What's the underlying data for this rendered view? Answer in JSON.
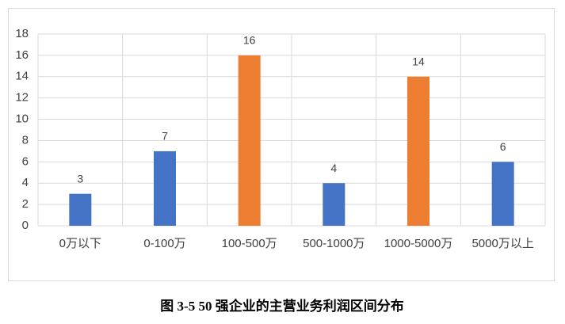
{
  "chart_data": {
    "type": "bar",
    "caption": "图 3-5 50 强企业的主营业务利润区间分布",
    "categories": [
      "0万以下",
      "0-100万",
      "100-500万",
      "500-1000万",
      "1000-5000万",
      "5000万以上"
    ],
    "values": [
      3,
      7,
      16,
      4,
      14,
      6
    ],
    "colors": [
      "#4472c4",
      "#4472c4",
      "#ed7d31",
      "#4472c4",
      "#ed7d31",
      "#4472c4"
    ],
    "ylim": [
      0,
      18
    ],
    "yticks": [
      0,
      2,
      4,
      6,
      8,
      10,
      12,
      14,
      16,
      18
    ],
    "grid": true
  }
}
